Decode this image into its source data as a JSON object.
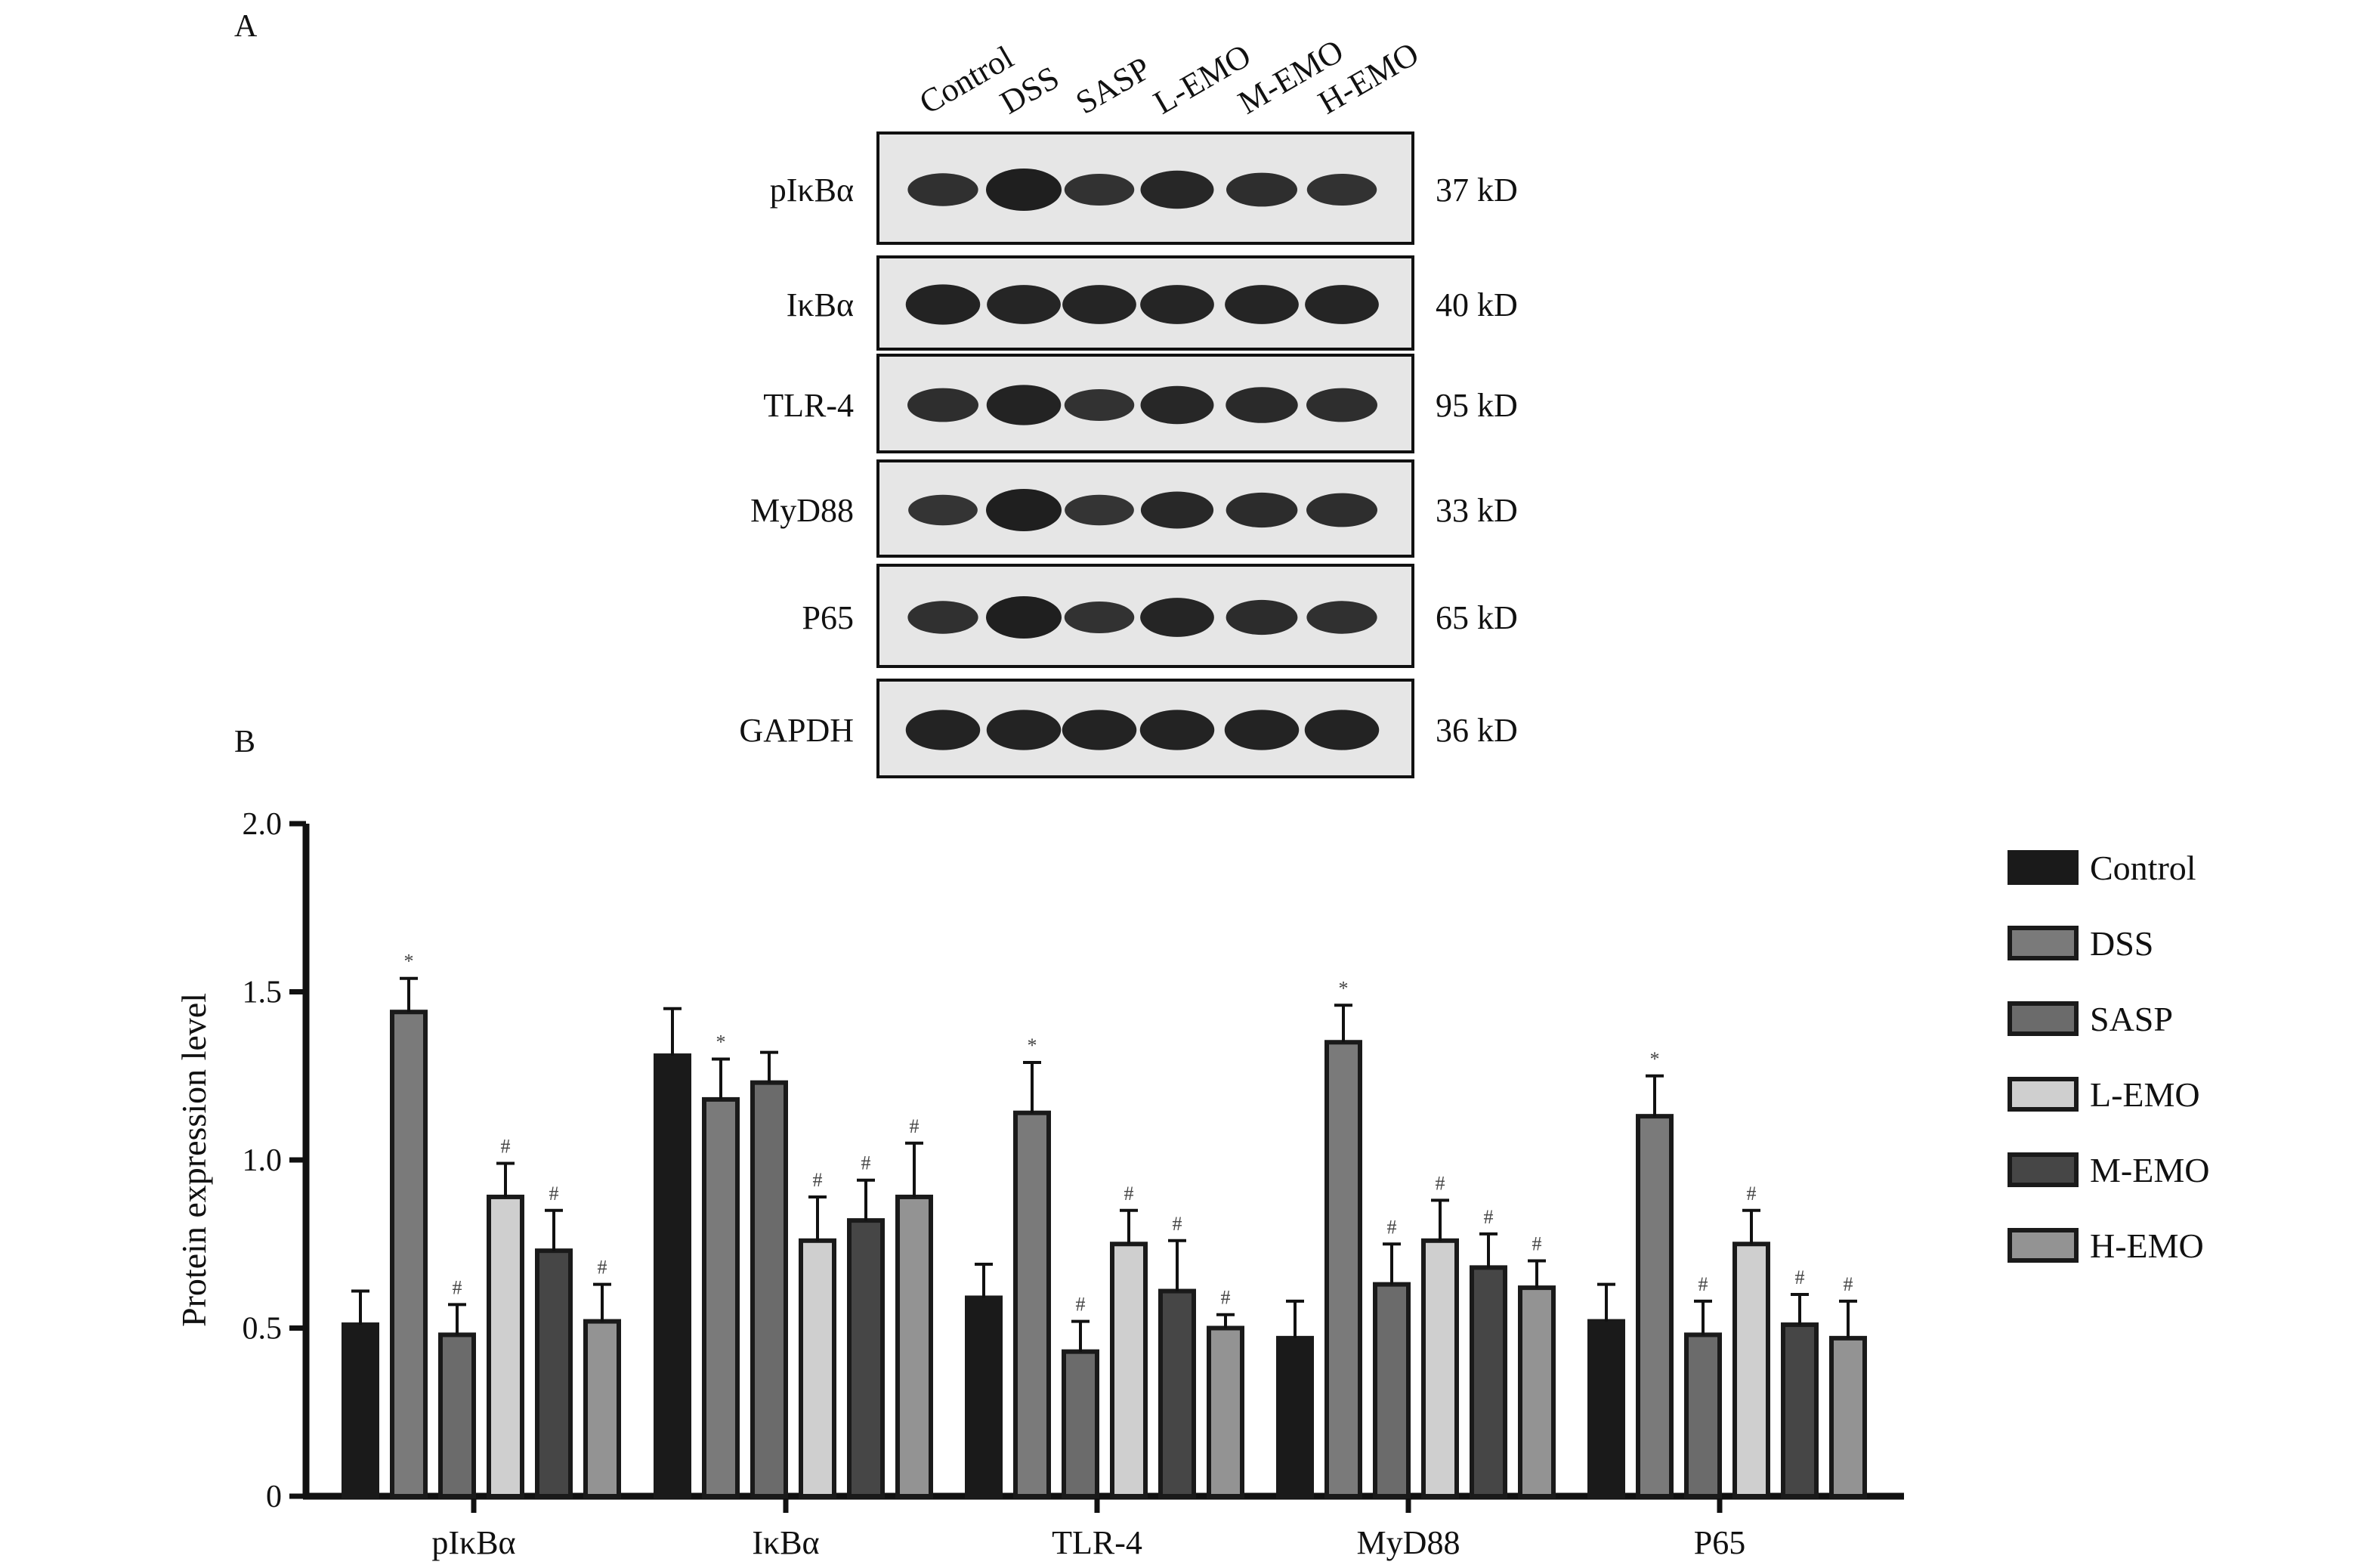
{
  "panels": {
    "a": "A",
    "b": "B"
  },
  "blot": {
    "lanes": [
      "Control",
      "DSS",
      "SASP",
      "L-EMO",
      "M-EMO",
      "H-EMO"
    ],
    "rows": [
      {
        "protein": "pIκBα",
        "kd": "37 kD",
        "intensity": [
          0.55,
          1.0,
          0.5,
          0.8,
          0.6,
          0.5
        ]
      },
      {
        "protein": "IκBα",
        "kd": "40 kD",
        "intensity": [
          0.9,
          0.85,
          0.85,
          0.85,
          0.85,
          0.85
        ]
      },
      {
        "protein": "TLR-4",
        "kd": "95 kD",
        "intensity": [
          0.6,
          0.9,
          0.5,
          0.8,
          0.7,
          0.6
        ]
      },
      {
        "protein": "MyD88",
        "kd": "33 kD",
        "intensity": [
          0.45,
          1.0,
          0.45,
          0.75,
          0.65,
          0.6
        ]
      },
      {
        "protein": "P65",
        "kd": "65 kD",
        "intensity": [
          0.55,
          1.0,
          0.5,
          0.85,
          0.65,
          0.55
        ]
      },
      {
        "protein": "GAPDH",
        "kd": "36 kD",
        "intensity": [
          0.9,
          0.9,
          0.9,
          0.9,
          0.9,
          0.9
        ]
      }
    ]
  },
  "chart_data": {
    "type": "bar",
    "ylabel": "Protein expression level",
    "ylim": [
      0,
      2.0
    ],
    "yticks": [
      0,
      0.5,
      1.0,
      1.5,
      2.0
    ],
    "ytick_labels": [
      "0",
      "0.5",
      "1.0",
      "1.5",
      "2.0"
    ],
    "legend_position": "right",
    "categories": [
      "pIκBα",
      "IκBα",
      "TLR-4",
      "MyD88",
      "P65"
    ],
    "series": [
      {
        "name": "Control",
        "color": "#1a1a1a",
        "values": [
          0.51,
          1.31,
          0.59,
          0.47,
          0.52
        ],
        "errors": [
          0.1,
          0.14,
          0.1,
          0.11,
          0.11
        ],
        "marks": [
          "",
          "",
          "",
          "",
          ""
        ]
      },
      {
        "name": "DSS",
        "color": "#7a7a7a",
        "values": [
          1.44,
          1.18,
          1.14,
          1.35,
          1.13
        ],
        "errors": [
          0.1,
          0.12,
          0.15,
          0.11,
          0.12
        ],
        "marks": [
          "*",
          "*",
          "*",
          "*",
          "*"
        ]
      },
      {
        "name": "SASP",
        "color": "#6b6b6b",
        "values": [
          0.48,
          1.23,
          0.43,
          0.63,
          0.48
        ],
        "errors": [
          0.09,
          0.09,
          0.09,
          0.12,
          0.1
        ],
        "marks": [
          "#",
          "",
          "#",
          "#",
          "#"
        ]
      },
      {
        "name": "L-EMO",
        "color": "#cfcfcf",
        "values": [
          0.89,
          0.76,
          0.75,
          0.76,
          0.75
        ],
        "errors": [
          0.1,
          0.13,
          0.1,
          0.12,
          0.1
        ],
        "marks": [
          "#",
          "#",
          "#",
          "#",
          "#"
        ]
      },
      {
        "name": "M-EMO",
        "color": "#464646",
        "values": [
          0.73,
          0.82,
          0.61,
          0.68,
          0.51
        ],
        "errors": [
          0.12,
          0.12,
          0.15,
          0.1,
          0.09
        ],
        "marks": [
          "#",
          "#",
          "#",
          "#",
          "#"
        ]
      },
      {
        "name": "H-EMO",
        "color": "#939393",
        "values": [
          0.52,
          0.89,
          0.5,
          0.62,
          0.47
        ],
        "errors": [
          0.11,
          0.16,
          0.04,
          0.08,
          0.11
        ],
        "marks": [
          "#",
          "#",
          "#",
          "#",
          "#"
        ]
      }
    ]
  }
}
